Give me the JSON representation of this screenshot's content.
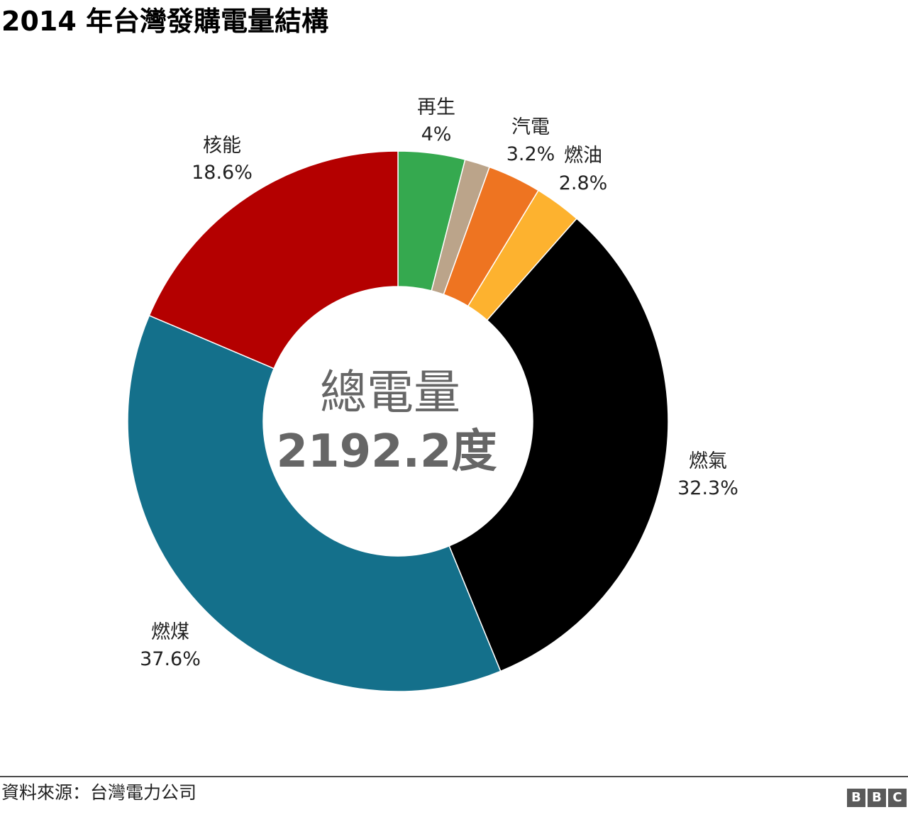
{
  "title": "2014 年台灣發購電量結構",
  "source": "資料來源：台灣電力公司",
  "logo_letters": [
    "B",
    "B",
    "C"
  ],
  "chart_data": {
    "type": "pie",
    "variant": "donut",
    "title": "2014 年台灣發購電量結構",
    "center_label": "總電量",
    "center_value": "2192.2度",
    "slices": [
      {
        "label": "再生",
        "value": 4.0,
        "value_label": "4%",
        "color": "#35a94f"
      },
      {
        "label": "",
        "value": 1.5,
        "value_label": "",
        "color": "#bba48a"
      },
      {
        "label": "汽電",
        "value": 3.2,
        "value_label": "3.2%",
        "color": "#ee7421"
      },
      {
        "label": "燃油",
        "value": 2.8,
        "value_label": "2.8%",
        "color": "#fdb22f"
      },
      {
        "label": "燃氣",
        "value": 32.3,
        "value_label": "32.3%",
        "color": "#000000"
      },
      {
        "label": "燃煤",
        "value": 37.6,
        "value_label": "37.6%",
        "color": "#14708b"
      },
      {
        "label": "核能",
        "value": 18.6,
        "value_label": "18.6%",
        "color": "#b40000"
      }
    ]
  }
}
